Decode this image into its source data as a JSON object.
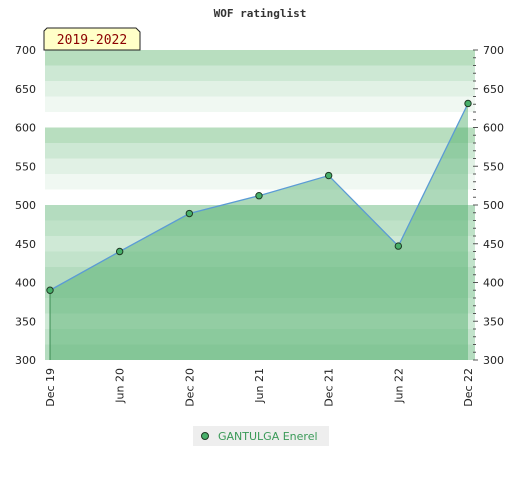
{
  "chart_data": {
    "type": "area",
    "title": "WOF ratinglist",
    "period_label": "2019-2022",
    "x": [
      "Dec 19",
      "Jun 20",
      "Dec 20",
      "Jun 21",
      "Dec 21",
      "Jun 22",
      "Dec 22"
    ],
    "series": [
      {
        "name": "GANTULGA Enerel",
        "values": [
          390,
          440,
          489,
          512,
          538,
          447,
          631
        ]
      }
    ],
    "ylim": [
      300,
      700
    ],
    "yticks": [
      300,
      350,
      400,
      450,
      500,
      550,
      600,
      650,
      700
    ],
    "grid": true,
    "legend_position": "bottom",
    "colors": {
      "line": "#5b9bd5",
      "fill": "#4aaa66",
      "marker": "#48b06a",
      "marker_stroke": "#1f3a24"
    }
  }
}
